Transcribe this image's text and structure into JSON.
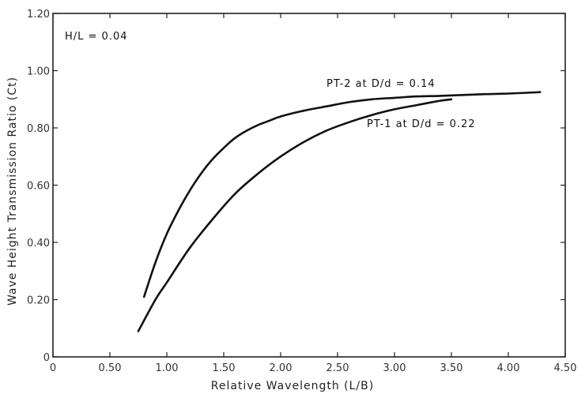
{
  "chart_data": {
    "type": "line",
    "xlabel": "Relative Wavelength (L/B)",
    "ylabel": "Wave Height Transmission Ratio (Ct)",
    "xlim": [
      0,
      4.5
    ],
    "ylim": [
      0,
      1.2
    ],
    "x_ticks": [
      {
        "v": 0,
        "label": "0"
      },
      {
        "v": 0.5,
        "label": "0.50"
      },
      {
        "v": 1.0,
        "label": "1.00"
      },
      {
        "v": 1.5,
        "label": "1.50"
      },
      {
        "v": 2.0,
        "label": "2.00"
      },
      {
        "v": 2.5,
        "label": "2.50"
      },
      {
        "v": 3.0,
        "label": "3.00"
      },
      {
        "v": 3.5,
        "label": "3.50"
      },
      {
        "v": 4.0,
        "label": "4.00"
      },
      {
        "v": 4.5,
        "label": "4.50"
      }
    ],
    "y_ticks": [
      {
        "v": 0,
        "label": "0"
      },
      {
        "v": 0.2,
        "label": "0.20"
      },
      {
        "v": 0.4,
        "label": "0.40"
      },
      {
        "v": 0.6,
        "label": "0.60"
      },
      {
        "v": 0.8,
        "label": "0.80"
      },
      {
        "v": 1.0,
        "label": "1.00"
      },
      {
        "v": 1.2,
        "label": "1.20"
      }
    ],
    "annotation": "H/L = 0.04",
    "grid": false,
    "series": [
      {
        "name": "PT-2 at D/d = 0.14",
        "x": [
          0.8,
          0.9,
          1.0,
          1.1,
          1.2,
          1.3,
          1.4,
          1.5,
          1.6,
          1.7,
          1.8,
          1.9,
          2.0,
          2.2,
          2.4,
          2.6,
          2.8,
          3.0,
          3.2,
          3.4,
          3.6,
          3.8,
          4.0,
          4.28
        ],
        "y": [
          0.21,
          0.33,
          0.43,
          0.51,
          0.58,
          0.64,
          0.69,
          0.73,
          0.765,
          0.79,
          0.81,
          0.825,
          0.84,
          0.86,
          0.875,
          0.89,
          0.9,
          0.905,
          0.91,
          0.912,
          0.915,
          0.918,
          0.92,
          0.925
        ]
      },
      {
        "name": "PT-1 at D/d = 0.22",
        "x": [
          0.75,
          0.9,
          1.0,
          1.2,
          1.4,
          1.6,
          1.8,
          2.0,
          2.2,
          2.4,
          2.6,
          2.8,
          3.0,
          3.2,
          3.4,
          3.5
        ],
        "y": [
          0.09,
          0.2,
          0.26,
          0.38,
          0.48,
          0.57,
          0.64,
          0.7,
          0.75,
          0.79,
          0.82,
          0.845,
          0.865,
          0.88,
          0.895,
          0.9
        ]
      }
    ]
  }
}
